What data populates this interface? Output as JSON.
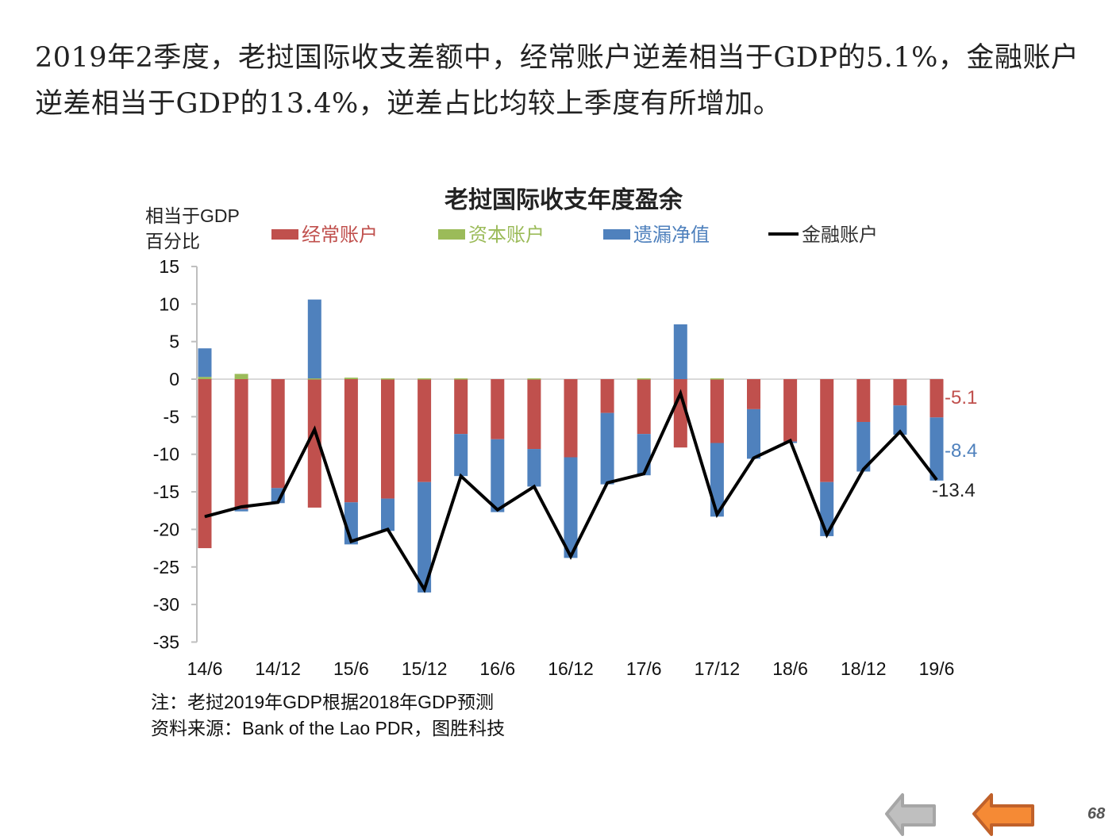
{
  "headline": "2019年2季度，老挝国际收支差额中，经常账户逆差相当于GDP的5.1%，金融账户逆差相当于GDP的13.4%，逆差占比均较上季度有所增加。",
  "chart_data": {
    "type": "bar",
    "title": "老挝国际收支年度盈余",
    "ylabel_line1": "相当于GDP",
    "ylabel_line2": "百分比",
    "ylim": [
      -35,
      15
    ],
    "yticks": [
      "15",
      "10",
      "5",
      "0",
      "-5",
      "-10",
      "-15",
      "-20",
      "-25",
      "-30",
      "-35"
    ],
    "ytick_values": [
      15,
      10,
      5,
      0,
      -5,
      -10,
      -15,
      -20,
      -25,
      -30,
      -35
    ],
    "categories": [
      "14/6",
      "14/9",
      "14/12",
      "15/3",
      "15/6",
      "15/9",
      "15/12",
      "16/3",
      "16/6",
      "16/9",
      "16/12",
      "17/3",
      "17/6",
      "17/9",
      "17/12",
      "18/3",
      "18/6",
      "18/9",
      "18/12",
      "19/3",
      "19/6"
    ],
    "xtick_labels": [
      "14/6",
      "14/12",
      "15/6",
      "15/12",
      "16/6",
      "16/12",
      "17/6",
      "17/12",
      "18/6",
      "18/12",
      "19/6"
    ],
    "legend_placement": "top",
    "series": [
      {
        "name": "经常账户",
        "type": "stacked-bar",
        "color": "#c0504d",
        "values": [
          -22.5,
          -17.3,
          -14.5,
          -17.1,
          -16.4,
          -15.9,
          -13.7,
          -7.3,
          -8.0,
          -9.3,
          -10.4,
          -4.5,
          -7.3,
          -9.1,
          -8.5,
          -4.0,
          -8.3,
          -13.7,
          -5.7,
          -3.5,
          -5.1
        ]
      },
      {
        "name": "资本账户",
        "type": "stacked-bar",
        "color": "#9bbb59",
        "values": [
          0.3,
          0.7,
          0.0,
          0.1,
          0.2,
          0.1,
          0.1,
          0.1,
          0.0,
          0.1,
          0.0,
          0.0,
          0.1,
          0.0,
          0.1,
          0.0,
          0.0,
          0.0,
          0.0,
          0.0,
          0.0
        ]
      },
      {
        "name": "遗漏净值",
        "type": "stacked-bar",
        "color": "#4f81bd",
        "values": [
          3.8,
          -0.3,
          -2.0,
          10.5,
          -5.6,
          -4.3,
          -14.7,
          -5.6,
          -9.7,
          -5.0,
          -13.4,
          -9.5,
          -5.5,
          7.3,
          -9.8,
          -6.6,
          -0.2,
          -7.2,
          -6.6,
          -3.9,
          -8.4
        ]
      },
      {
        "name": "金融账户",
        "type": "line",
        "color": "#000000",
        "values": [
          -18.3,
          -17.0,
          -16.4,
          -6.7,
          -21.6,
          -20.0,
          -28.0,
          -12.9,
          -17.4,
          -14.3,
          -23.6,
          -13.8,
          -12.6,
          -1.9,
          -18.0,
          -10.5,
          -8.2,
          -20.7,
          -12.0,
          -7.0,
          -13.4
        ]
      }
    ],
    "annotations": [
      {
        "text": "-5.1",
        "color": "#c0504d"
      },
      {
        "text": "-8.4",
        "color": "#4f81bd"
      },
      {
        "text": "-13.4",
        "color": "#222222"
      }
    ]
  },
  "notes": {
    "line1": "注：老挝2019年GDP根据2018年GDP预测",
    "line2": "资料来源：Bank  of the Lao PDR，图胜科技"
  },
  "page_number": "68",
  "nav": {
    "prev_color": "#a6a6a6",
    "next_color": "#f58a35"
  }
}
